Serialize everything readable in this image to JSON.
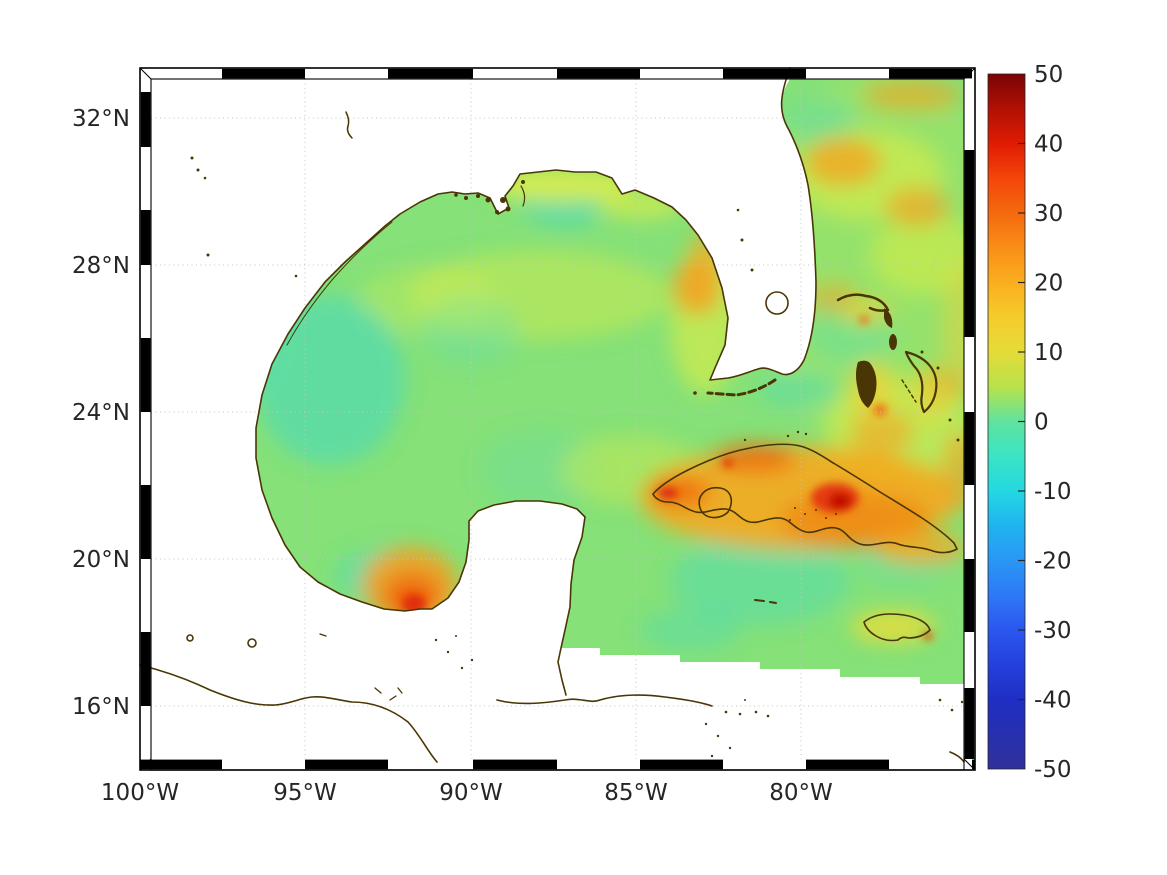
{
  "figure": {
    "background": "#ffffff",
    "frame_color": "#000000"
  },
  "axes": {
    "lat_ticks": [
      "32°N",
      "28°N",
      "24°N",
      "20°N",
      "16°N"
    ],
    "lon_ticks": [
      "100°W",
      "95°W",
      "90°W",
      "85°W",
      "80°W"
    ]
  },
  "colorbar": {
    "tick_labels": [
      "50",
      "40",
      "30",
      "20",
      "10",
      "0",
      "-10",
      "-20",
      "-30",
      "-40",
      "-50"
    ],
    "tick_values": [
      50,
      40,
      30,
      20,
      10,
      0,
      -10,
      -20,
      -30,
      -40,
      -50
    ],
    "min": -50,
    "max": 50,
    "stops": [
      {
        "v": 50,
        "color": "#7a0403"
      },
      {
        "v": 45,
        "color": "#b01105"
      },
      {
        "v": 40,
        "color": "#e01b02"
      },
      {
        "v": 35,
        "color": "#f4460a"
      },
      {
        "v": 30,
        "color": "#f4690e"
      },
      {
        "v": 25,
        "color": "#f98f17"
      },
      {
        "v": 20,
        "color": "#fbae1f"
      },
      {
        "v": 15,
        "color": "#f5cc2c"
      },
      {
        "v": 10,
        "color": "#e4dc38"
      },
      {
        "v": 5,
        "color": "#b8e24b"
      },
      {
        "v": 0,
        "color": "#5fe39f"
      },
      {
        "v": -5,
        "color": "#3be4c4"
      },
      {
        "v": -10,
        "color": "#24d8e2"
      },
      {
        "v": -15,
        "color": "#1fb4ef"
      },
      {
        "v": -20,
        "color": "#2997f5"
      },
      {
        "v": -25,
        "color": "#2e78f6"
      },
      {
        "v": -30,
        "color": "#2b57f0"
      },
      {
        "v": -35,
        "color": "#2440dc"
      },
      {
        "v": -40,
        "color": "#1f2fc4"
      },
      {
        "v": -50,
        "color": "#30309b"
      }
    ]
  },
  "palette": {
    "field_base_green": "#85e178",
    "cool_teal": "#46d9c2",
    "warm_yellow": "#e9ef3f",
    "warm_orange": "#f7a01e",
    "hot_red": "#e02c08",
    "coastline_brown": "#4a3505",
    "gridline_gray": "#c4c4c4"
  },
  "chart_data": {
    "type": "heatmap",
    "title": "",
    "region": "Gulf of Mexico, Florida, Bahamas, Cuba, Jamaica, western Caribbean",
    "x_axis": {
      "label": "longitude",
      "tick_labels": [
        "100°W",
        "95°W",
        "90°W",
        "85°W",
        "80°W"
      ],
      "approx_range_deg_west": [
        100,
        74.8
      ],
      "grid": true
    },
    "y_axis": {
      "label": "latitude",
      "tick_labels": [
        "32°N",
        "28°N",
        "24°N",
        "20°N",
        "16°N"
      ],
      "approx_range_deg_north": [
        14.2,
        33.4
      ],
      "grid": true
    },
    "colorbar_range": [
      -50,
      50
    ],
    "colorbar_ticks": [
      50,
      40,
      30,
      20,
      10,
      0,
      -10,
      -20,
      -30,
      -40,
      -50
    ],
    "colormap": "turbo-like: dark blue (-50) -> cyan (-10) -> green (0) -> yellow (10) -> orange (20-30) -> red (40) -> dark red (50)",
    "background_field_value_range": [
      0,
      10
    ],
    "land_mask": "white (no data over US, Mexico, Yucatan, Florida interiors); field drawn over Cuba, Jamaica, Bahamas banks",
    "notable_features": [
      {
        "name": "Bay of Campeche coastal hotspot",
        "approx_lon": -92.2,
        "approx_lat": 19.3,
        "peak_value": 38
      },
      {
        "name": "Cuba island-wide warm band",
        "approx_lon": -80.5,
        "approx_lat": 22.2,
        "value_range": [
          20,
          45
        ]
      },
      {
        "name": "Central Cuba red core",
        "approx_lon": -79.0,
        "approx_lat": 21.9,
        "peak_value": 45
      },
      {
        "name": "Northeast Gulf (west of Florida Big Bend) orange patch",
        "approx_lon": -83.3,
        "approx_lat": 28.2,
        "peak_value": 24
      },
      {
        "name": "Atlantic mesoscale warm patches (NE corner)",
        "approx_lon": -77.5,
        "approx_lat": 30.5,
        "value_range": [
          15,
          25
        ]
      },
      {
        "name": "Bahamas banks warm spots",
        "approx_lon": -77.8,
        "approx_lat": 24.5,
        "value_range": [
          12,
          22
        ]
      },
      {
        "name": "Jamaica coastal band",
        "approx_lon": -77.4,
        "approx_lat": 18.1,
        "value_range": [
          10,
          20
        ]
      },
      {
        "name": "Western Gulf cool patch",
        "approx_lon": -95.5,
        "approx_lat": 23.5,
        "value_range": [
          -8,
          -3
        ]
      },
      {
        "name": "Cool patch east of Mississippi delta",
        "approx_lon": -88.5,
        "approx_lat": 29.3,
        "value_range": [
          -6,
          -2
        ]
      },
      {
        "name": "South-of-Cuba cool area",
        "approx_lon": -81.5,
        "approx_lat": 20.5,
        "value_range": [
          -6,
          0
        ]
      }
    ]
  }
}
